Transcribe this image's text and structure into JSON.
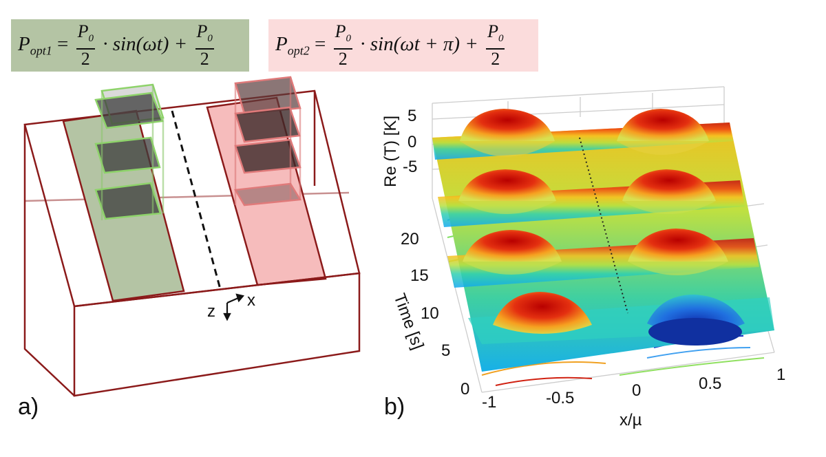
{
  "equations": {
    "eq1": {
      "lhs": "P",
      "lhs_sub": "opt1",
      "frac_num": "P",
      "frac_num_sub": "0",
      "frac_den": "2",
      "middle": "· sin(ωt) +",
      "color": "#b4c4a4"
    },
    "eq2": {
      "lhs": "P",
      "lhs_sub": "opt2",
      "frac_num": "P",
      "frac_num_sub": "0",
      "frac_den": "2",
      "middle": "· sin(ωt + π) +",
      "color": "#fbdcdc"
    }
  },
  "panel_a": {
    "label": "a)",
    "axes": {
      "horizontal": "x",
      "vertical": "z"
    },
    "colors": {
      "box_edges": "#8b1a1a",
      "stripe_left": "#b4c4a4",
      "stripe_right": "#f6bcbc",
      "pulse_edge_left": "#8ed36a",
      "pulse_edge_right": "#e07a7a"
    }
  },
  "panel_b": {
    "label": "b)",
    "zlabel": "Re (T) [K]",
    "z_ticks": [
      "5",
      "0",
      "-5"
    ],
    "ylabel": "Time [s]",
    "y_ticks": [
      "20",
      "15",
      "10",
      "5",
      "0"
    ],
    "xlabel": "x/µ",
    "x_ticks": [
      "-1",
      "-0.5",
      "0",
      "0.5",
      "1"
    ],
    "colormap": "jet"
  }
}
